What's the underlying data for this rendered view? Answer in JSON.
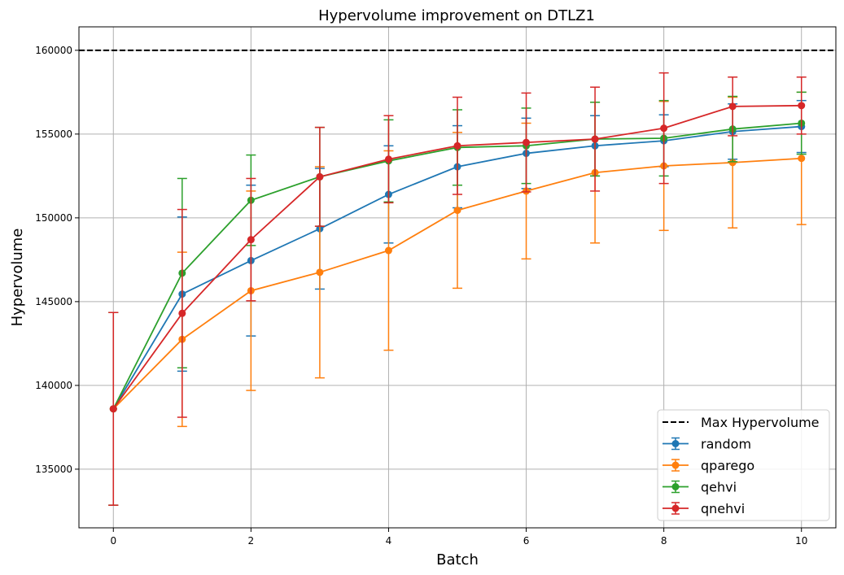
{
  "chart_data": {
    "type": "line",
    "title": "Hypervolume improvement on DTLZ1",
    "xlabel": "Batch",
    "ylabel": "Hypervolume",
    "xlim": [
      -0.5,
      10.5
    ],
    "ylim": [
      131500,
      161400
    ],
    "grid": true,
    "legend_position": "lower right",
    "x": [
      0,
      1,
      2,
      3,
      4,
      5,
      6,
      7,
      8,
      9,
      10
    ],
    "x_ticks": [
      0,
      2,
      4,
      6,
      8,
      10
    ],
    "y_ticks": [
      135000,
      140000,
      145000,
      150000,
      155000,
      160000
    ],
    "reference_line": {
      "name": "Max Hypervolume",
      "value": 160000,
      "color": "#000000",
      "style": "dashed"
    },
    "series": [
      {
        "name": "random",
        "color": "#1f77b4",
        "values": [
          138600,
          145450,
          147450,
          149350,
          151400,
          153050,
          153850,
          154300,
          154600,
          155150,
          155450
        ],
        "err": [
          5750,
          4600,
          4500,
          3600,
          2900,
          2450,
          2100,
          1800,
          1550,
          1650,
          1550
        ]
      },
      {
        "name": "qparego",
        "color": "#ff7f0e",
        "values": [
          138600,
          142750,
          145650,
          146750,
          148050,
          150450,
          151600,
          152700,
          153100,
          153300,
          153550
        ],
        "err": [
          5750,
          5200,
          5950,
          6300,
          5950,
          4650,
          4050,
          4200,
          3850,
          3900,
          3950
        ]
      },
      {
        "name": "qehvi",
        "color": "#2ca02c",
        "values": [
          138600,
          146700,
          151050,
          152450,
          153400,
          154200,
          154300,
          154700,
          154750,
          155300,
          155650
        ],
        "err": [
          5750,
          5650,
          2700,
          2950,
          2450,
          2250,
          2250,
          2200,
          2250,
          1950,
          1850
        ]
      },
      {
        "name": "qnehvi",
        "color": "#d62728",
        "values": [
          138600,
          144300,
          148700,
          152450,
          153500,
          154300,
          154500,
          154700,
          155350,
          156650,
          156700
        ],
        "err": [
          5750,
          6200,
          3650,
          2950,
          2600,
          2900,
          2950,
          3100,
          3300,
          1750,
          1700
        ]
      }
    ]
  }
}
